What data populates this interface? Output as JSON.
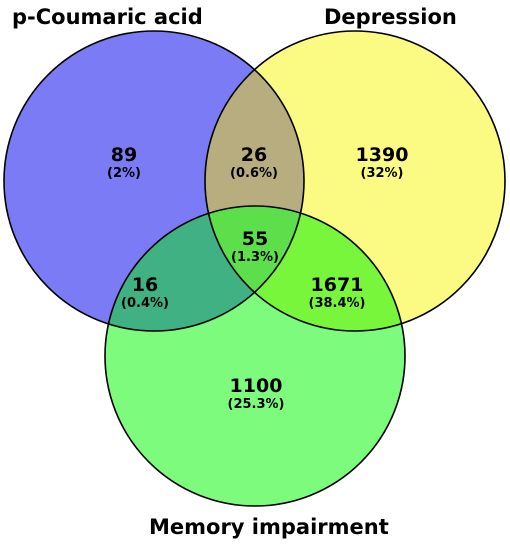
{
  "sets": [
    {
      "id": "a",
      "label": "p-Coumaric acid",
      "color": "#7b7bf5"
    },
    {
      "id": "b",
      "label": "Depression",
      "color": "#fbfb84"
    },
    {
      "id": "c",
      "label": "Memory impairment",
      "color": "#7cfb7c"
    }
  ],
  "regions": {
    "a_only": {
      "count": "89",
      "percent": "(2%)"
    },
    "ab": {
      "count": "26",
      "percent": "(0.6%)"
    },
    "b_only": {
      "count": "1390",
      "percent": "(32%)"
    },
    "abc": {
      "count": "55",
      "percent": "(1.3%)"
    },
    "ac": {
      "count": "16",
      "percent": "(0.4%)"
    },
    "bc": {
      "count": "1671",
      "percent": "(38.4%)"
    },
    "c_only": {
      "count": "1100",
      "percent": "(25.3%)"
    }
  },
  "region_colors": {
    "ab": "#b7ad7e",
    "ac": "#3fb183",
    "bc": "#77f63c",
    "abc": "#5ddf4c"
  }
}
